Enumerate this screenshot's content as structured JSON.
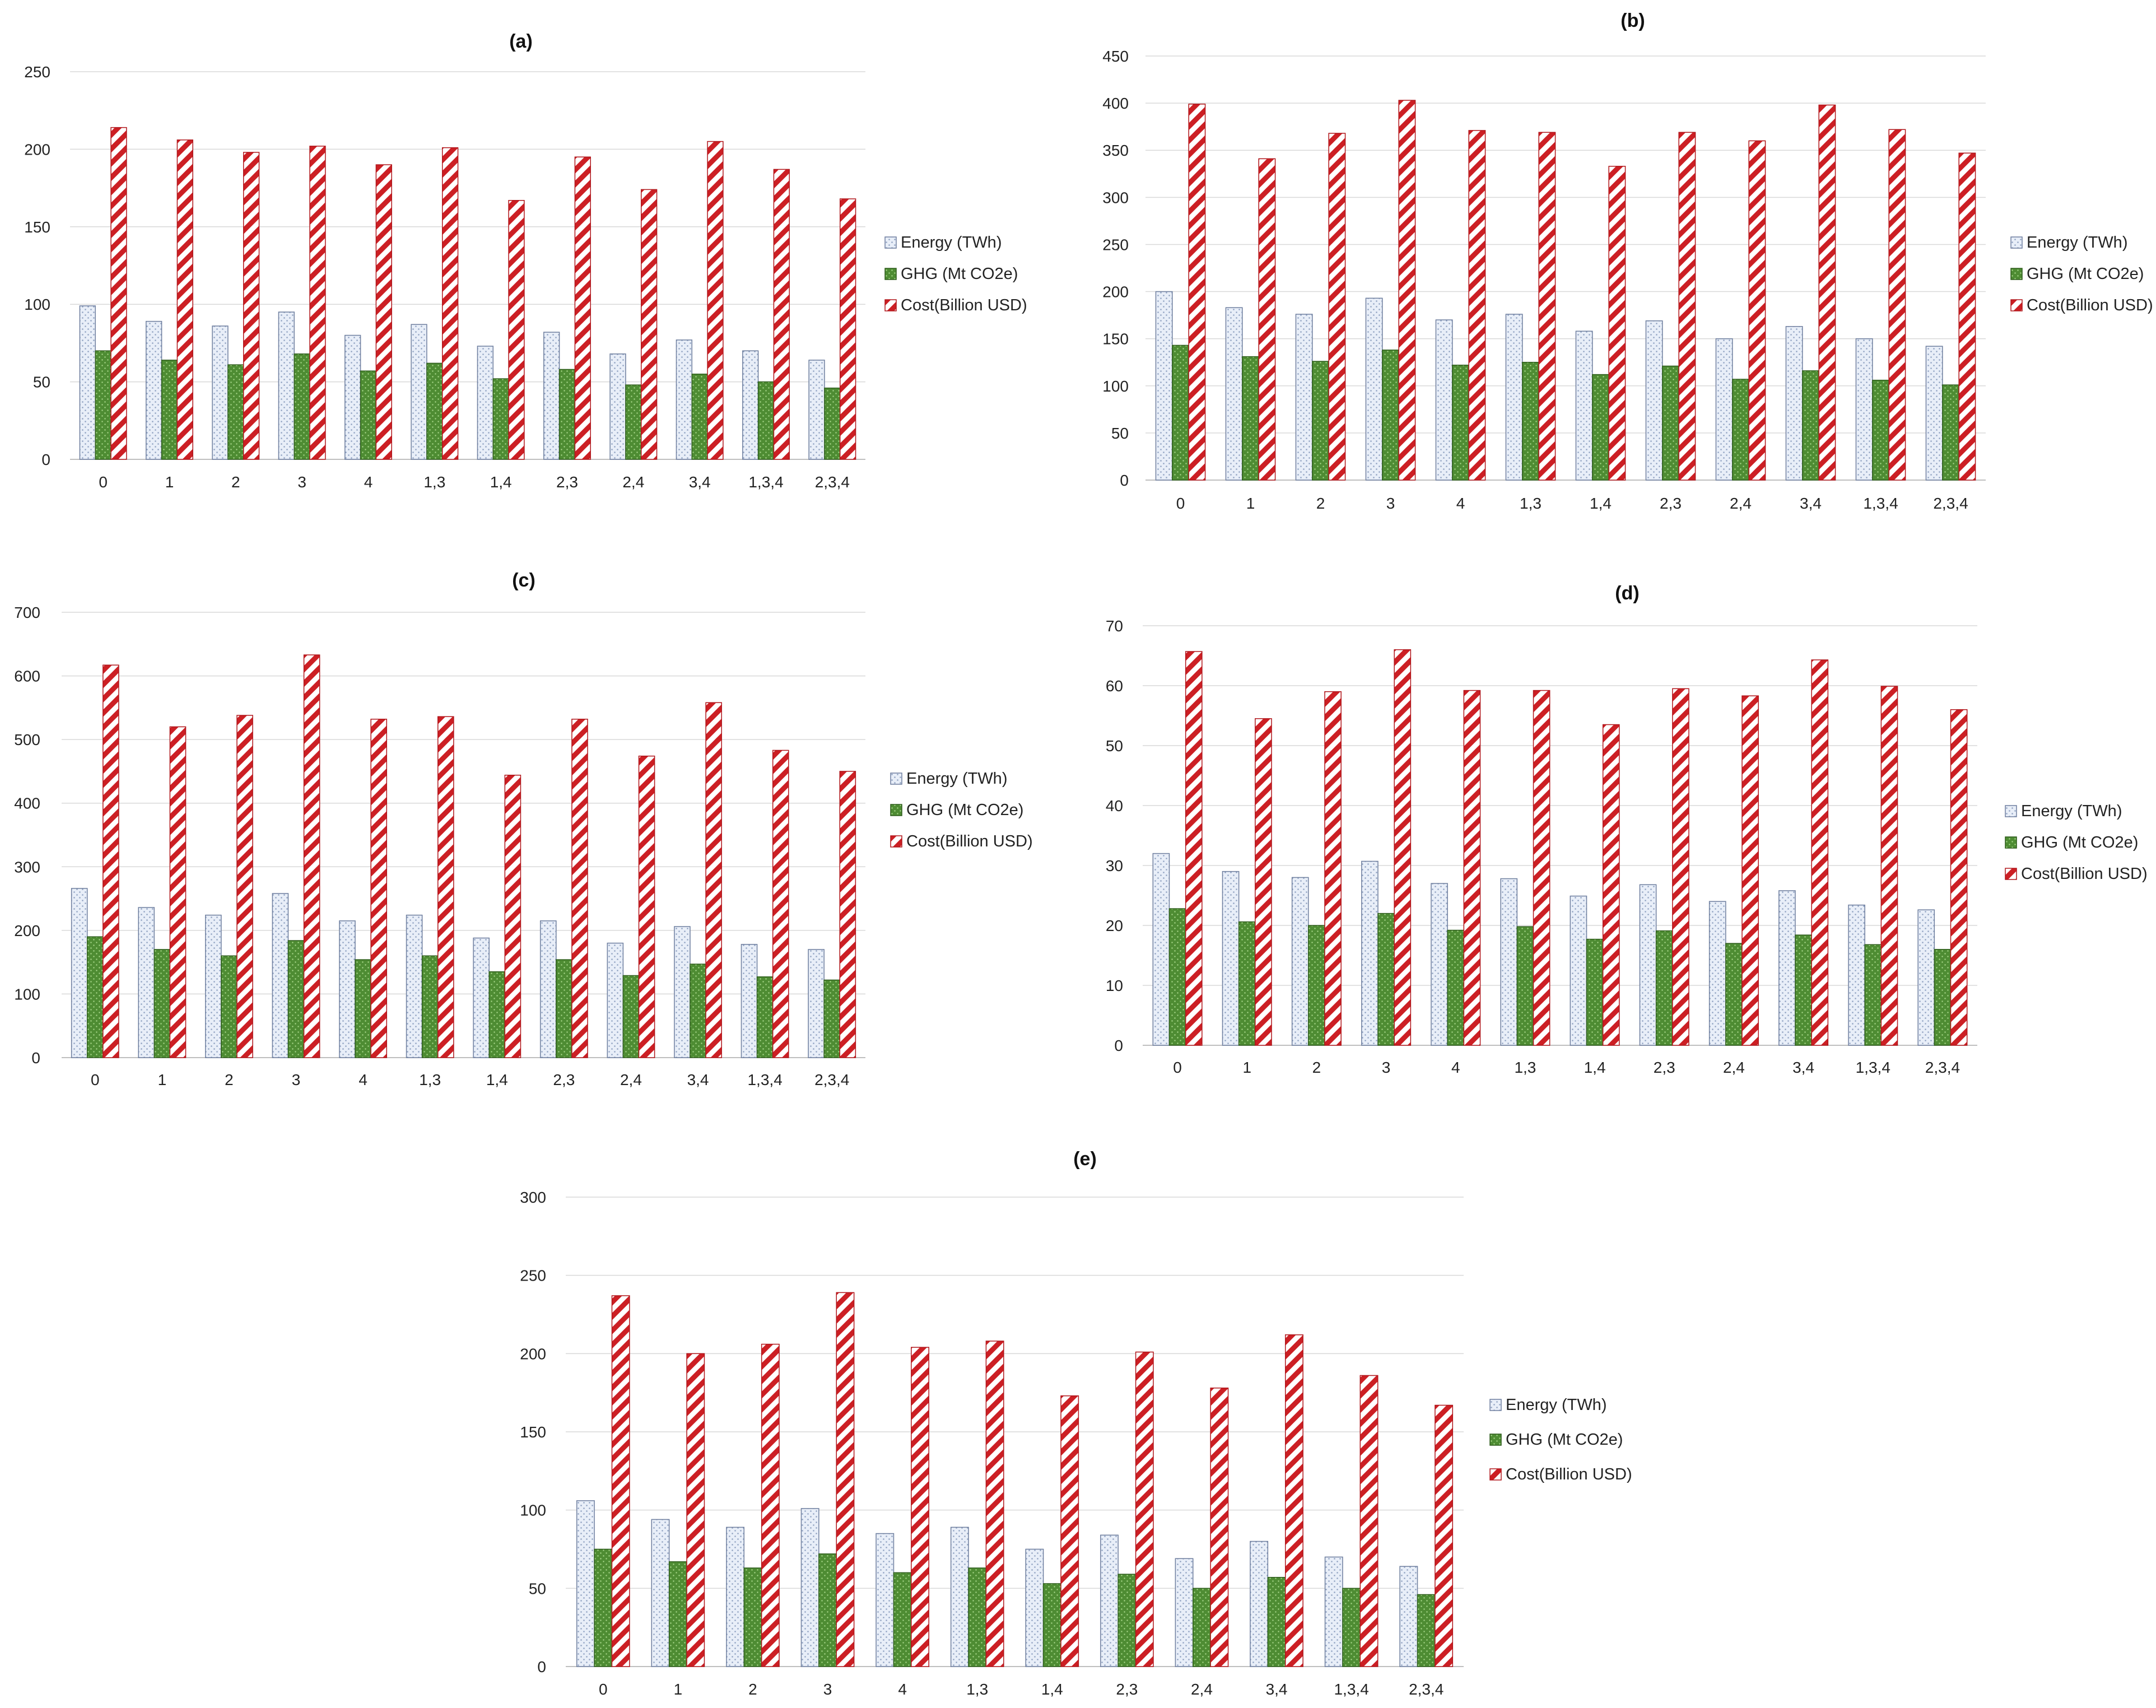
{
  "colors": {
    "energy_fill": "#e8eef8",
    "energy_dots": "#8ea0c0",
    "energy_stroke": "#6f7f9f",
    "ghg_fill": "#4e8c33",
    "ghg_dots": "#a8d88a",
    "ghg_stroke": "#2e5d1c",
    "cost_stripe": "#cc1f24",
    "cost_bg": "#ffffff",
    "cost_stroke": "#b0161b",
    "grid": "#d9d9d9",
    "axis": "#bfbfbf"
  },
  "chart_data": [
    {
      "type": "bar",
      "title": "(a)",
      "categories": [
        "0",
        "1",
        "2",
        "3",
        "4",
        "1,3",
        "1,4",
        "2,3",
        "2,4",
        "3,4",
        "1,3,4",
        "2,3,4"
      ],
      "ylim": [
        0,
        250
      ],
      "yticks": [
        "0",
        "50",
        "100",
        "150",
        "200",
        "250"
      ],
      "legend_position": "right",
      "series": [
        {
          "name": "Energy (TWh)",
          "values": [
            99,
            89,
            86,
            95,
            80,
            87,
            73,
            82,
            68,
            77,
            70,
            64
          ]
        },
        {
          "name": "GHG (Mt CO2e)",
          "values": [
            70,
            64,
            61,
            68,
            57,
            62,
            52,
            58,
            48,
            55,
            50,
            46
          ]
        },
        {
          "name": "Cost(Billion USD)",
          "values": [
            214,
            206,
            198,
            202,
            190,
            201,
            167,
            195,
            174,
            205,
            187,
            168
          ]
        }
      ]
    },
    {
      "type": "bar",
      "title": "(b)",
      "categories": [
        "0",
        "1",
        "2",
        "3",
        "4",
        "1,3",
        "1,4",
        "2,3",
        "2,4",
        "3,4",
        "1,3,4",
        "2,3,4"
      ],
      "ylim": [
        0,
        450
      ],
      "yticks": [
        "0",
        "50",
        "100",
        "150",
        "200",
        "250",
        "300",
        "350",
        "400",
        "450"
      ],
      "legend_position": "right",
      "series": [
        {
          "name": "Energy (TWh)",
          "values": [
            200,
            183,
            176,
            193,
            170,
            176,
            158,
            169,
            150,
            163,
            150,
            142
          ]
        },
        {
          "name": "GHG (Mt CO2e)",
          "values": [
            143,
            131,
            126,
            138,
            122,
            125,
            112,
            121,
            107,
            116,
            106,
            101
          ]
        },
        {
          "name": "Cost(Billion USD)",
          "values": [
            399,
            341,
            368,
            403,
            371,
            369,
            333,
            369,
            360,
            398,
            372,
            347
          ]
        }
      ]
    },
    {
      "type": "bar",
      "title": "(c)",
      "categories": [
        "0",
        "1",
        "2",
        "3",
        "4",
        "1,3",
        "1,4",
        "2,3",
        "2,4",
        "3,4",
        "1,3,4",
        "2,3,4"
      ],
      "ylim": [
        0,
        700
      ],
      "yticks": [
        "0",
        "100",
        "200",
        "300",
        "400",
        "500",
        "600",
        "700"
      ],
      "legend_position": "right",
      "series": [
        {
          "name": "Energy (TWh)",
          "values": [
            266,
            236,
            224,
            258,
            215,
            224,
            188,
            215,
            180,
            206,
            178,
            170
          ]
        },
        {
          "name": "GHG (Mt CO2e)",
          "values": [
            190,
            170,
            160,
            184,
            154,
            160,
            135,
            154,
            129,
            147,
            127,
            122
          ]
        },
        {
          "name": "Cost(Billion USD)",
          "values": [
            617,
            520,
            538,
            633,
            532,
            536,
            444,
            532,
            474,
            558,
            483,
            450
          ]
        }
      ]
    },
    {
      "type": "bar",
      "title": "(d)",
      "categories": [
        "0",
        "1",
        "2",
        "3",
        "4",
        "1,3",
        "1,4",
        "2,3",
        "2,4",
        "3,4",
        "1,3,4",
        "2,3,4"
      ],
      "ylim": [
        0,
        70
      ],
      "yticks": [
        "0",
        "10",
        "20",
        "30",
        "40",
        "50",
        "60",
        "70"
      ],
      "legend_position": "right",
      "series": [
        {
          "name": "Energy (TWh)",
          "values": [
            32,
            29,
            28,
            30.7,
            27,
            27.8,
            24.9,
            26.8,
            24,
            25.8,
            23.4,
            22.6
          ]
        },
        {
          "name": "GHG (Mt CO2e)",
          "values": [
            22.8,
            20.6,
            20,
            22,
            19.2,
            19.8,
            17.7,
            19.1,
            17,
            18.4,
            16.8,
            16
          ]
        },
        {
          "name": "Cost(Billion USD)",
          "values": [
            65.7,
            54.5,
            59,
            66,
            59.2,
            59.2,
            53.5,
            59.5,
            58.3,
            64.3,
            59.9,
            56
          ]
        }
      ]
    },
    {
      "type": "bar",
      "title": "(e)",
      "categories": [
        "0",
        "1",
        "2",
        "3",
        "4",
        "1,3",
        "1,4",
        "2,3",
        "2,4",
        "3,4",
        "1,3,4",
        "2,3,4"
      ],
      "ylim": [
        0,
        300
      ],
      "yticks": [
        "0",
        "50",
        "100",
        "150",
        "200",
        "250",
        "300"
      ],
      "legend_position": "right",
      "series": [
        {
          "name": "Energy (TWh)",
          "values": [
            106,
            94,
            89,
            101,
            85,
            89,
            75,
            84,
            69,
            80,
            70,
            64
          ]
        },
        {
          "name": "GHG (Mt CO2e)",
          "values": [
            75,
            67,
            63,
            72,
            60,
            63,
            53,
            59,
            50,
            57,
            50,
            46
          ]
        },
        {
          "name": "Cost(Billion USD)",
          "values": [
            237,
            200,
            206,
            239,
            204,
            208,
            173,
            201,
            178,
            212,
            186,
            167
          ]
        }
      ]
    }
  ]
}
